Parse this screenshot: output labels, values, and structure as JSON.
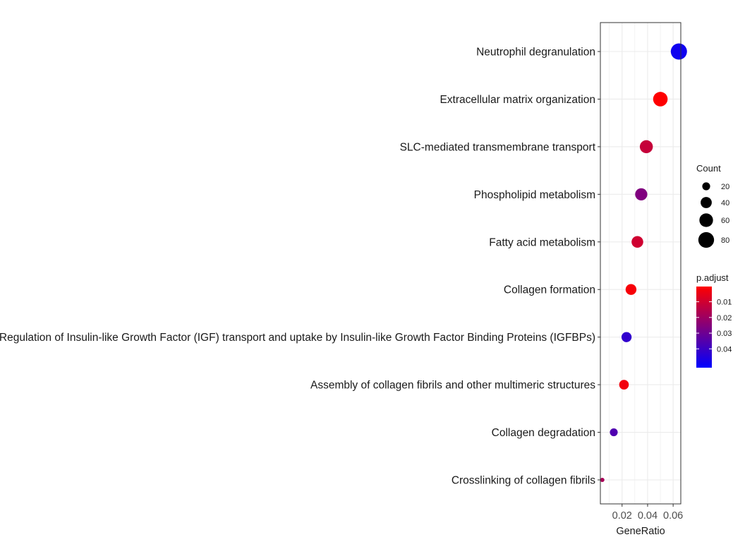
{
  "chart_data": {
    "type": "scatter",
    "title": "",
    "xlabel": "GeneRatio",
    "ylabel": "",
    "x_ticks": [
      "0.02",
      "0.04",
      "0.06"
    ],
    "x_tick_values": [
      0.02,
      0.04,
      0.06
    ],
    "xlim": [
      0.003,
      0.066
    ],
    "grid": true,
    "legend_placement": "right",
    "categories": [
      "Neutrophil degranulation",
      "Extracellular matrix organization",
      "SLC-mediated transmembrane transport",
      "Phospholipid metabolism",
      "Fatty acid metabolism",
      "Collagen formation",
      "Regulation of Insulin-like Growth Factor (IGF) transport and uptake by Insulin-like Growth Factor Binding Proteins (IGFBPs)",
      "Assembly of collagen fibrils and other multimeric structures",
      "Collagen degradation",
      "Crosslinking of collagen fibrils"
    ],
    "points": [
      {
        "term": "Neutrophil degranulation",
        "gene_ratio": 0.0645,
        "count": 85,
        "p_adjust": 0.049
      },
      {
        "term": "Extracellular matrix organization",
        "gene_ratio": 0.05,
        "count": 68,
        "p_adjust": 0.0005
      },
      {
        "term": "SLC-mediated transmembrane transport",
        "gene_ratio": 0.039,
        "count": 55,
        "p_adjust": 0.012
      },
      {
        "term": "Phospholipid metabolism",
        "gene_ratio": 0.035,
        "count": 48,
        "p_adjust": 0.026
      },
      {
        "term": "Fatty acid metabolism",
        "gene_ratio": 0.032,
        "count": 44,
        "p_adjust": 0.01
      },
      {
        "term": "Collagen formation",
        "gene_ratio": 0.027,
        "count": 38,
        "p_adjust": 0.002
      },
      {
        "term": "Regulation of Insulin-like Growth Factor (IGF) transport and uptake by Insulin-like Growth Factor Binding Proteins (IGFBPs)",
        "gene_ratio": 0.0235,
        "count": 33,
        "p_adjust": 0.042
      },
      {
        "term": "Assembly of collagen fibrils and other multimeric structures",
        "gene_ratio": 0.0215,
        "count": 30,
        "p_adjust": 0.003
      },
      {
        "term": "Collagen degradation",
        "gene_ratio": 0.0135,
        "count": 20,
        "p_adjust": 0.036
      },
      {
        "term": "Crosslinking of collagen fibrils",
        "gene_ratio": 0.0045,
        "count": 6,
        "p_adjust": 0.018
      }
    ],
    "legends": {
      "size": {
        "title": "Count",
        "breaks": [
          20,
          40,
          60,
          80
        ],
        "labels": [
          "20",
          "40",
          "60",
          "80"
        ]
      },
      "color": {
        "title": "p.adjust",
        "low_color": "#ff0000",
        "high_color": "#0000ff",
        "range": [
          0.0003,
          0.052
        ],
        "breaks": [
          0.01,
          0.02,
          0.03,
          0.04
        ],
        "labels": [
          "0.01",
          "0.02",
          "0.03",
          "0.04"
        ]
      }
    }
  }
}
